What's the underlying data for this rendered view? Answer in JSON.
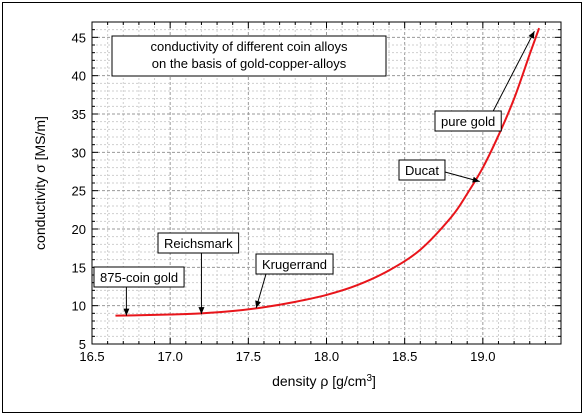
{
  "chart_data": {
    "type": "line",
    "title_lines": [
      "conductivity of different coin alloys",
      "on the basis of gold-copper-alloys"
    ],
    "xlabel": "density ρ  [g/cm",
    "xlabel_sup": "3",
    "xlabel_end": "]",
    "ylabel": "conductivity σ  [MS/m]",
    "xlim": [
      16.5,
      19.5
    ],
    "ylim": [
      5,
      47
    ],
    "x_ticks": [
      16.5,
      17.0,
      17.5,
      18.0,
      18.5,
      19.0
    ],
    "x_tick_labels": [
      "16.5",
      "17.0",
      "17.5",
      "18.0",
      "18.5",
      "19.0"
    ],
    "y_ticks": [
      5,
      10,
      15,
      20,
      25,
      30,
      35,
      40,
      45
    ],
    "y_tick_labels": [
      "5",
      "10",
      "15",
      "20",
      "25",
      "30",
      "35",
      "40",
      "45"
    ],
    "grid": true,
    "series_color": "#e8151b",
    "series": [
      {
        "x": [
          16.65,
          16.8,
          17.0,
          17.2,
          17.4,
          17.6,
          17.8,
          18.0,
          18.2,
          18.4,
          18.6,
          18.8,
          18.9,
          19.0,
          19.1,
          19.2,
          19.3,
          19.36
        ],
        "values": [
          8.7,
          8.75,
          8.85,
          9.0,
          9.3,
          9.8,
          10.5,
          11.4,
          12.7,
          14.6,
          17.3,
          21.6,
          24.6,
          28.0,
          32.2,
          37.0,
          42.8,
          46.2
        ]
      }
    ],
    "annotations": [
      {
        "label": "875-coin gold",
        "x": 16.72,
        "y": 8.7
      },
      {
        "label": "Reichsmark",
        "x": 17.2,
        "y": 8.9
      },
      {
        "label": "Krugerrand",
        "x": 17.55,
        "y": 9.7
      },
      {
        "label": "Ducat",
        "x": 18.98,
        "y": 26.2
      },
      {
        "label": "pure gold",
        "x": 19.33,
        "y": 45.8
      }
    ]
  }
}
